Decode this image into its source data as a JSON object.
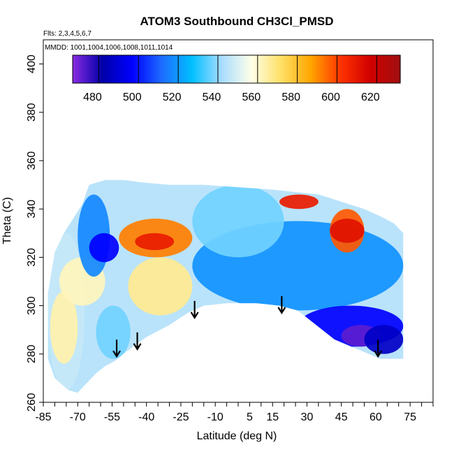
{
  "chart_data": {
    "type": "heatmap",
    "title": "ATOM3 Southbound CH3Cl_PMSD",
    "subtitle_flights": "Flts: 2,3,4,5,6,7",
    "subtitle_dates": "MMDD: 1001,1004,1006,1008,1011,1014",
    "xlabel": "Latitude (deg N)",
    "ylabel": "Theta (C)",
    "xlim": [
      -85,
      85
    ],
    "ylim": [
      260,
      410
    ],
    "x_ticks": [
      -85,
      -70,
      -55,
      -40,
      -25,
      -10,
      5,
      15,
      30,
      45,
      60,
      75
    ],
    "y_ticks": [
      260,
      280,
      300,
      320,
      340,
      360,
      380,
      400
    ],
    "colorbar": {
      "range": [
        470,
        635
      ],
      "ticks": [
        480,
        500,
        520,
        540,
        560,
        580,
        600,
        620
      ],
      "colors": [
        "#8a2be2",
        "#0000a8",
        "#0000ff",
        "#1e6cff",
        "#00bfff",
        "#a8dcff",
        "#ffffe8",
        "#ffe066",
        "#ffa500",
        "#ff3300",
        "#d00000",
        "#a01010"
      ]
    },
    "arrows_latitude": [
      -53,
      -44,
      -19,
      19,
      61
    ],
    "arrow_tip_theta": [
      279,
      282,
      295,
      297,
      279
    ],
    "field_regions": [
      {
        "x": [
          -83,
          -67
        ],
        "y": [
          265,
          330
        ],
        "value": 550
      },
      {
        "x": [
          -82,
          -70
        ],
        "y": [
          276,
          306
        ],
        "value": 567
      },
      {
        "x": [
          -78,
          -58
        ],
        "y": [
          300,
          320
        ],
        "value": 565
      },
      {
        "x": [
          -70,
          -56
        ],
        "y": [
          312,
          346
        ],
        "value": 520
      },
      {
        "x": [
          -65,
          -52
        ],
        "y": [
          318,
          330
        ],
        "value": 500
      },
      {
        "x": [
          -52,
          -20
        ],
        "y": [
          320,
          336
        ],
        "value": 595
      },
      {
        "x": [
          -45,
          -28
        ],
        "y": [
          323,
          330
        ],
        "value": 612
      },
      {
        "x": [
          -48,
          -20
        ],
        "y": [
          296,
          320
        ],
        "value": 570
      },
      {
        "x": [
          -62,
          -47
        ],
        "y": [
          278,
          300
        ],
        "value": 540
      },
      {
        "x": [
          -20,
          72
        ],
        "y": [
          298,
          335
        ],
        "value": 522
      },
      {
        "x": [
          -20,
          20
        ],
        "y": [
          320,
          350
        ],
        "value": 540
      },
      {
        "x": [
          18,
          35
        ],
        "y": [
          340,
          346
        ],
        "value": 612
      },
      {
        "x": [
          40,
          55
        ],
        "y": [
          322,
          340
        ],
        "value": 600
      },
      {
        "x": [
          40,
          55
        ],
        "y": [
          326,
          336
        ],
        "value": 615
      },
      {
        "x": [
          26,
          72
        ],
        "y": [
          283,
          300
        ],
        "value": 500
      },
      {
        "x": [
          45,
          62
        ],
        "y": [
          283,
          292
        ],
        "value": 475
      },
      {
        "x": [
          55,
          72
        ],
        "y": [
          280,
          292
        ],
        "value": 490
      }
    ]
  }
}
